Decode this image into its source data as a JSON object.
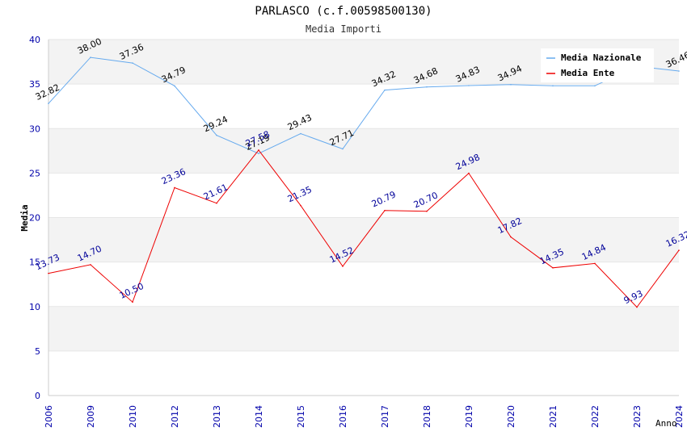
{
  "chart_data": {
    "type": "line",
    "title": "PARLASCO (c.f.00598500130)",
    "subtitle": "Media Importi",
    "xlabel": "Anno",
    "ylabel": "Media",
    "ylim": [
      0,
      40
    ],
    "yticks": [
      0,
      5,
      10,
      15,
      20,
      25,
      30,
      35,
      40
    ],
    "grid": true,
    "legend_position": "top-right",
    "categories": [
      "2006",
      "2009",
      "2010",
      "2012",
      "2013",
      "2014",
      "2015",
      "2016",
      "2017",
      "2018",
      "2019",
      "2020",
      "2021",
      "2022",
      "2023",
      "2024"
    ],
    "series": [
      {
        "name": "Media Nazionale",
        "color": "#66aaee",
        "label_color": "#000000",
        "values": [
          32.82,
          38.0,
          37.36,
          34.79,
          29.24,
          27.19,
          29.43,
          27.71,
          34.32,
          34.68,
          34.83,
          34.94,
          34.8,
          34.8,
          37.0,
          36.46
        ],
        "labels": [
          "32.82",
          "38.00",
          "37.36",
          "34.79",
          "29.24",
          "27.19",
          "29.43",
          "27.71",
          "34.32",
          "34.68",
          "34.83",
          "34.94",
          "",
          "",
          "",
          "36.46"
        ]
      },
      {
        "name": "Media Ente",
        "color": "#ee0000",
        "label_color": "#000099",
        "values": [
          13.73,
          14.7,
          10.5,
          23.36,
          21.61,
          27.58,
          21.35,
          14.52,
          20.79,
          20.7,
          24.98,
          17.82,
          14.35,
          14.84,
          9.93,
          16.32
        ],
        "labels": [
          "13.73",
          "14.70",
          "10.50",
          "23.36",
          "21.61",
          "27.58",
          "21.35",
          "14.52",
          "20.79",
          "20.70",
          "24.98",
          "17.82",
          "14.35",
          "14.84",
          "9.93",
          "16.32"
        ]
      }
    ]
  }
}
